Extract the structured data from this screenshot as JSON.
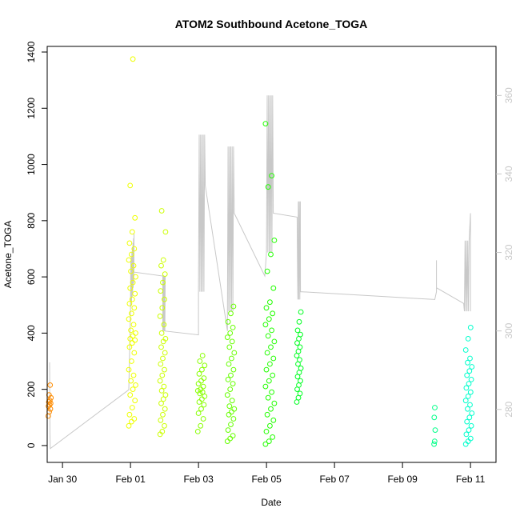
{
  "chart_data": {
    "type": "scatter",
    "title": "ATOM2 Southbound Acetone_TOGA",
    "xlabel": "Date",
    "ylabel": "Acetone_TOGA",
    "x_unit": "days since Jan 29 00:00",
    "xlim": [
      0.55,
      13.75
    ],
    "ylim": [
      -60,
      1420
    ],
    "x_ticks": [
      {
        "value": 1,
        "label": "Jan 30"
      },
      {
        "value": 3,
        "label": "Feb 01"
      },
      {
        "value": 5,
        "label": "Feb 03"
      },
      {
        "value": 7,
        "label": "Feb 05"
      },
      {
        "value": 9,
        "label": "Feb 07"
      },
      {
        "value": 11,
        "label": "Feb 09"
      },
      {
        "value": 13,
        "label": "Feb 11"
      }
    ],
    "y_ticks": [
      0,
      200,
      400,
      600,
      800,
      1000,
      1200,
      1400
    ],
    "y2_ticks": [
      280,
      300,
      320,
      340,
      360
    ],
    "y2_axis": {
      "description": "secondary axis for grey trace",
      "ylim": [
        266.5,
        372.5
      ]
    },
    "series": [
      {
        "name": "Acetone_TOGA (colored by latitude)",
        "kind": "points",
        "marker": "open-circle"
      },
      {
        "name": "secondary trace",
        "kind": "line",
        "color": "#c8c8c8"
      }
    ],
    "clusters": [
      {
        "x_center": 0.62,
        "x_spread": 0.04,
        "y_values": [
          105,
          120,
          130,
          140,
          145,
          150,
          155,
          160,
          170,
          180,
          215
        ],
        "color": "#ff8c00"
      },
      {
        "x_center": 3.05,
        "x_spread": 0.1,
        "y_values": [
          70,
          85,
          95,
          110,
          135,
          160,
          180,
          200,
          215,
          230,
          250,
          270,
          300,
          330,
          350,
          365,
          375,
          380,
          390,
          400,
          410,
          430,
          450,
          470,
          490,
          505,
          520,
          540,
          560,
          580,
          600,
          620,
          640,
          660,
          680,
          700,
          720,
          760,
          810,
          925,
          1375
        ],
        "color": "#eeff00"
      },
      {
        "x_center": 3.95,
        "x_spread": 0.08,
        "y_values": [
          40,
          50,
          70,
          90,
          110,
          130,
          150,
          165,
          180,
          195,
          210,
          230,
          250,
          270,
          290,
          310,
          330,
          350,
          370,
          380,
          400,
          430,
          460,
          490,
          520,
          550,
          580,
          610,
          640,
          660,
          760,
          835
        ],
        "color": "#ccff00"
      },
      {
        "x_center": 5.08,
        "x_spread": 0.1,
        "y_values": [
          50,
          70,
          95,
          115,
          130,
          145,
          155,
          165,
          175,
          185,
          190,
          195,
          200,
          210,
          220,
          230,
          240,
          255,
          270,
          285,
          300,
          320
        ],
        "color": "#88ff00"
      },
      {
        "x_center": 5.95,
        "x_spread": 0.1,
        "y_values": [
          15,
          25,
          35,
          55,
          75,
          95,
          110,
          120,
          130,
          140,
          160,
          180,
          200,
          220,
          235,
          250,
          270,
          290,
          310,
          330,
          350,
          370,
          385,
          400,
          420,
          440,
          470,
          495
        ],
        "color": "#66ff00"
      },
      {
        "x_center": 7.1,
        "x_spread": 0.13,
        "y_values": [
          5,
          15,
          30,
          50,
          70,
          90,
          110,
          130,
          150,
          170,
          190,
          210,
          230,
          250,
          270,
          290,
          310,
          330,
          350,
          370,
          390,
          410,
          430,
          450,
          470,
          490,
          510,
          560,
          620,
          680,
          730,
          920,
          960,
          1145
        ],
        "color": "#22ff00"
      },
      {
        "x_center": 7.95,
        "x_spread": 0.06,
        "y_values": [
          155,
          170,
          185,
          200,
          215,
          230,
          245,
          260,
          275,
          290,
          305,
          320,
          335,
          350,
          365,
          380,
          395,
          410,
          440,
          475
        ],
        "color": "#00ff22"
      },
      {
        "x_center": 11.95,
        "x_spread": 0.02,
        "y_values": [
          5,
          15,
          55,
          100,
          135
        ],
        "color": "#00ff88"
      },
      {
        "x_center": 12.95,
        "x_spread": 0.09,
        "y_values": [
          5,
          15,
          25,
          40,
          55,
          70,
          85,
          100,
          115,
          130,
          145,
          160,
          175,
          190,
          205,
          220,
          235,
          250,
          265,
          280,
          295,
          310,
          340,
          380,
          420
        ],
        "color": "#00ffcc"
      }
    ]
  }
}
